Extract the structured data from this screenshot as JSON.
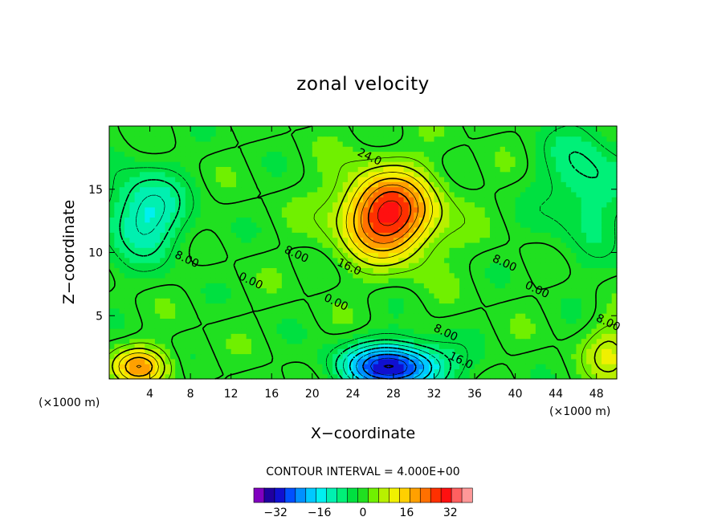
{
  "chart_data": {
    "type": "heatmap",
    "subtype": "filled-contour",
    "title": "zonal velocity",
    "xlabel": "X−coordinate",
    "ylabel": "Z−coordinate",
    "x_unit_left": "(×1000 m)",
    "x_unit_right": "(×1000 m)",
    "xlim": [
      0,
      50
    ],
    "ylim": [
      0,
      20
    ],
    "x_ticks": [
      4,
      8,
      12,
      16,
      20,
      24,
      28,
      32,
      36,
      40,
      44,
      48
    ],
    "y_ticks": [
      5,
      10,
      15
    ],
    "x_tick_labels": [
      "4",
      "8",
      "12",
      "16",
      "20",
      "24",
      "28",
      "32",
      "36",
      "40",
      "44",
      "48"
    ],
    "y_tick_labels": [
      "5",
      "10",
      "15"
    ],
    "contour_interval_text": "CONTOUR INTERVAL = 4.000E+00",
    "contour_interval": 4,
    "contour_labels": [
      {
        "text": "24.0",
        "x": 25.5,
        "z": 17.3
      },
      {
        "text": "16.0",
        "x": 23.5,
        "z": 8.6
      },
      {
        "text": "8.00",
        "x": 18.3,
        "z": 9.6
      },
      {
        "text": "8.00",
        "x": 7.5,
        "z": 9.2
      },
      {
        "text": "0.00",
        "x": 13.8,
        "z": 7.5
      },
      {
        "text": "0.00",
        "x": 22.2,
        "z": 5.8
      },
      {
        "text": "8.00",
        "x": 33.0,
        "z": 3.4
      },
      {
        "text": "16.0",
        "x": 34.5,
        "z": 1.2
      },
      {
        "text": "8.00",
        "x": 38.8,
        "z": 8.9
      },
      {
        "text": "0.00",
        "x": 42.0,
        "z": 6.8
      },
      {
        "text": "8.00",
        "x": 49.0,
        "z": 4.2
      }
    ],
    "field_features": [
      {
        "kind": "jet-max",
        "x": 27.5,
        "z": 13.0,
        "value": 30,
        "sx": 4.6,
        "sz": 3.3
      },
      {
        "kind": "jet-min",
        "x": 28.0,
        "z": 1.0,
        "value": -32,
        "sx": 4.8,
        "sz": 1.8
      },
      {
        "kind": "upper-left-min",
        "x": 3.5,
        "z": 13.0,
        "value": -14,
        "sx": 4.0,
        "sz": 3.4
      },
      {
        "kind": "lower-left-max",
        "x": 3.0,
        "z": 1.0,
        "value": 18,
        "sx": 2.8,
        "sz": 1.5
      },
      {
        "kind": "upper-right-min",
        "x": 47.0,
        "z": 15.5,
        "value": -9,
        "sx": 4.0,
        "sz": 5.0
      },
      {
        "kind": "lower-right-max",
        "x": 49.5,
        "z": 2.0,
        "value": 9,
        "sx": 2.5,
        "sz": 2.5
      }
    ],
    "colorbar": {
      "tick_labels": [
        "−32",
        "−16",
        "0",
        "16",
        "32"
      ],
      "tick_values": [
        -32,
        -16,
        0,
        16,
        32
      ],
      "min": -40,
      "max": 40,
      "colors": [
        "#8000c0",
        "#2000a0",
        "#1010d0",
        "#0050ff",
        "#0090ff",
        "#00c8ff",
        "#00f0f0",
        "#00f0b0",
        "#00f078",
        "#00e040",
        "#20e020",
        "#70f000",
        "#b8f000",
        "#f0f000",
        "#ffd000",
        "#ffa000",
        "#ff7000",
        "#ff3000",
        "#ff1010",
        "#ff6060",
        "#ff9898"
      ]
    }
  }
}
